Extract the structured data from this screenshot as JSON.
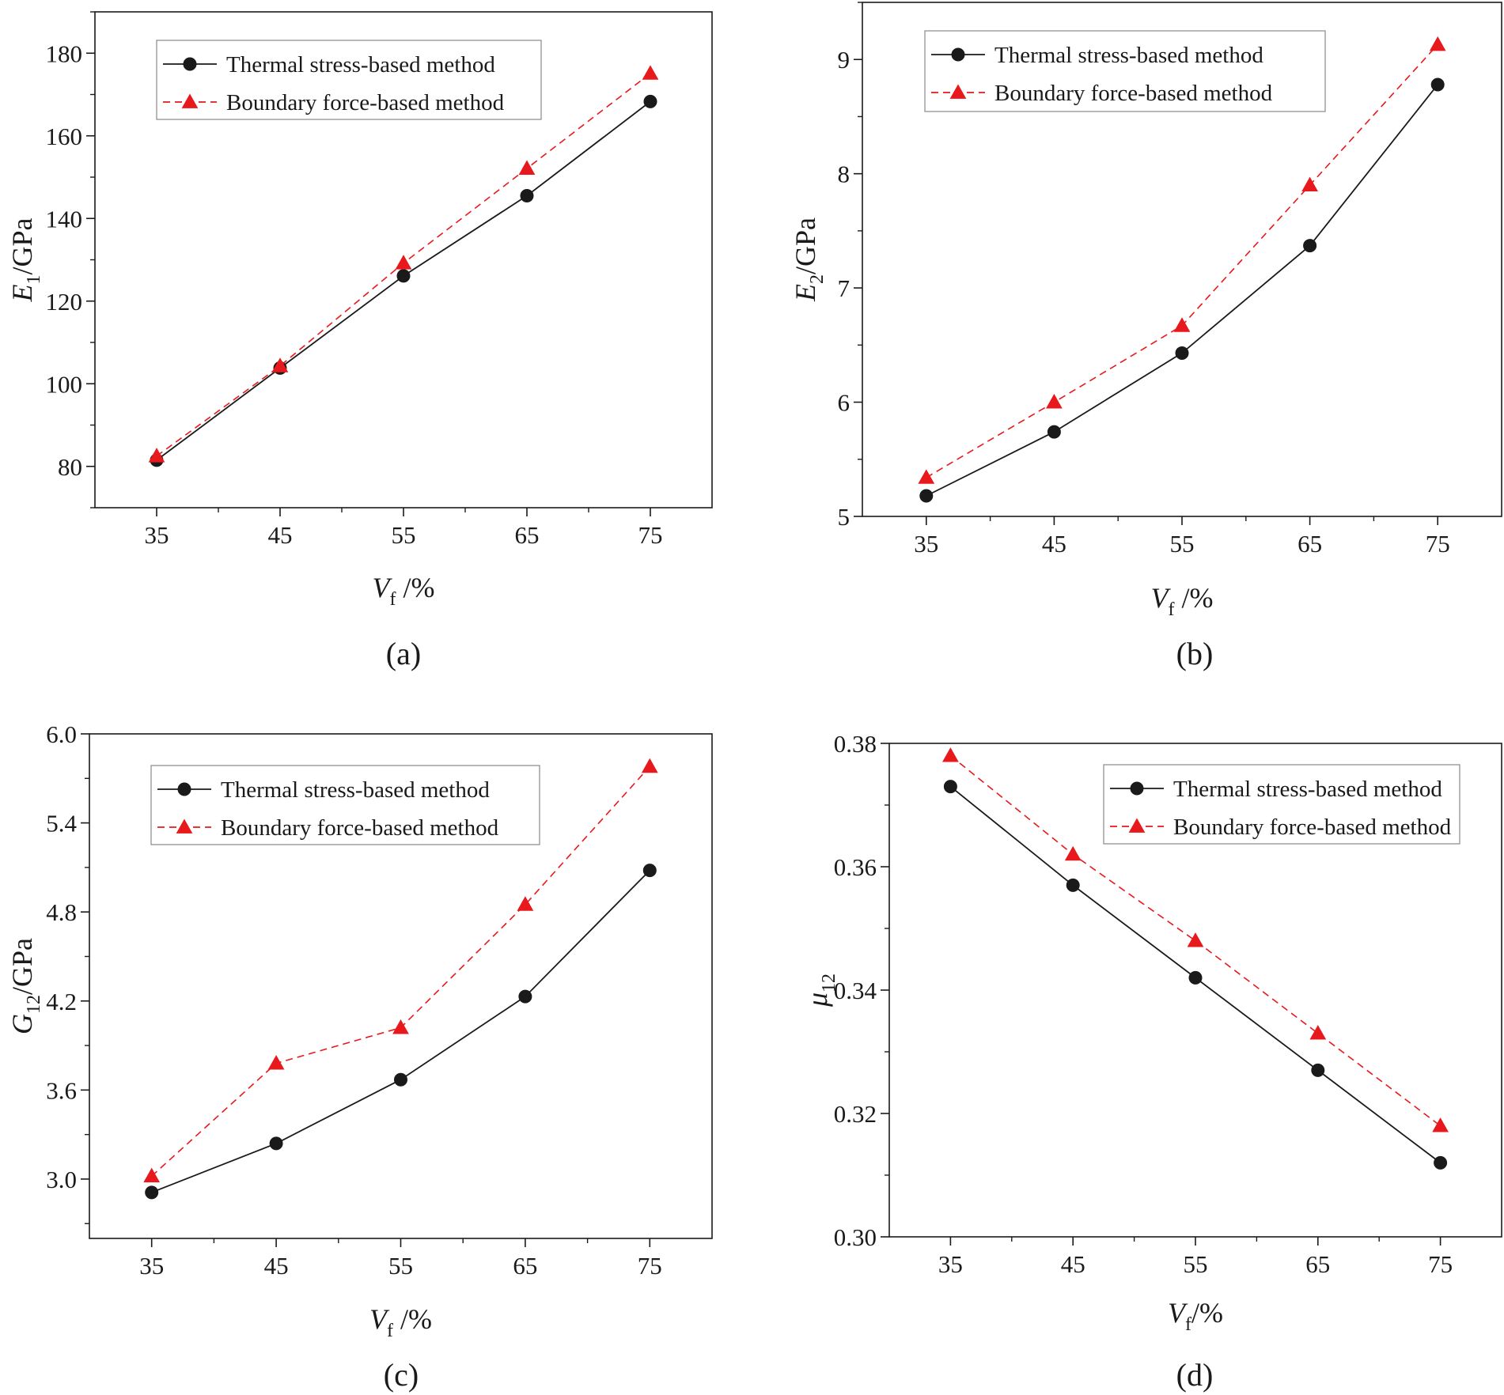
{
  "colors": {
    "series_thermal": "#1a1a1a",
    "series_boundary": "#e8191c"
  },
  "chart_data": [
    {
      "type": "line",
      "panel": "(a)",
      "x": [
        35,
        45,
        55,
        65,
        75
      ],
      "x_ticks": [
        "35",
        "45",
        "55",
        "65",
        "75"
      ],
      "xlim": [
        30,
        80
      ],
      "ylim": [
        70,
        190
      ],
      "y_ticks": [
        80,
        100,
        120,
        140,
        160,
        180
      ],
      "y_tick_labels": [
        "80",
        "100",
        "120",
        "140",
        "160",
        "180"
      ],
      "ylabel": {
        "symbol": "E",
        "sub": "1",
        "unit": "/GPa"
      },
      "xlabel": {
        "symbol": "V",
        "sub": "f",
        "unit": " /%"
      },
      "legend": "top-left",
      "series": [
        {
          "name": "Thermal stress-based method",
          "style": "solid",
          "marker": "circle",
          "values": [
            81.5,
            103.8,
            126.1,
            145.5,
            168.3
          ]
        },
        {
          "name": "Boundary force-based method",
          "style": "dashed",
          "marker": "triangle",
          "values": [
            82.5,
            104.3,
            129.2,
            152.1,
            175.1
          ]
        }
      ]
    },
    {
      "type": "line",
      "panel": "(b)",
      "x": [
        35,
        45,
        55,
        65,
        75
      ],
      "x_ticks": [
        "35",
        "45",
        "55",
        "65",
        "75"
      ],
      "xlim": [
        30,
        80
      ],
      "ylim": [
        5.0,
        9.5
      ],
      "y_ticks": [
        5,
        6,
        7,
        8,
        9
      ],
      "y_tick_labels": [
        "5",
        "6",
        "7",
        "8",
        "9"
      ],
      "ylabel": {
        "symbol": "E",
        "sub": "2",
        "unit": "/GPa"
      },
      "xlabel": {
        "symbol": "V",
        "sub": "f",
        "unit": " /%"
      },
      "legend": "top-left",
      "series": [
        {
          "name": "Thermal stress-based method",
          "style": "solid",
          "marker": "circle",
          "values": [
            5.18,
            5.74,
            6.43,
            7.37,
            8.78
          ]
        },
        {
          "name": "Boundary force-based method",
          "style": "dashed",
          "marker": "triangle",
          "values": [
            5.34,
            6.0,
            6.67,
            7.9,
            9.13
          ]
        }
      ]
    },
    {
      "type": "line",
      "panel": "(c)",
      "x": [
        35,
        45,
        55,
        65,
        75
      ],
      "x_ticks": [
        "35",
        "45",
        "55",
        "65",
        "75"
      ],
      "xlim": [
        30,
        80
      ],
      "ylim": [
        2.6,
        6.0
      ],
      "y_ticks": [
        3.0,
        3.6,
        4.2,
        4.8,
        5.4,
        6.0
      ],
      "y_tick_labels": [
        "3.0",
        "3.6",
        "4.2",
        "4.8",
        "5.4",
        "6.0"
      ],
      "ylabel": {
        "symbol": "G",
        "sub": "12",
        "unit": "/GPa"
      },
      "xlabel": {
        "symbol": "V",
        "sub": "f",
        "unit": " /%"
      },
      "legend": "top-left",
      "series": [
        {
          "name": "Thermal stress-based method",
          "style": "solid",
          "marker": "circle",
          "values": [
            2.91,
            3.24,
            3.67,
            4.23,
            5.08
          ]
        },
        {
          "name": "Boundary force-based method",
          "style": "dashed",
          "marker": "triangle",
          "values": [
            3.02,
            3.78,
            4.02,
            4.85,
            5.78
          ]
        }
      ]
    },
    {
      "type": "line",
      "panel": "(d)",
      "x": [
        35,
        45,
        55,
        65,
        75
      ],
      "x_ticks": [
        "35",
        "45",
        "55",
        "65",
        "75"
      ],
      "xlim": [
        30,
        80
      ],
      "ylim": [
        0.3,
        0.38
      ],
      "y_ticks": [
        0.3,
        0.32,
        0.34,
        0.36,
        0.38
      ],
      "y_tick_labels": [
        "0.30",
        "0.32",
        "0.34",
        "0.36",
        "0.38"
      ],
      "ylabel": {
        "symbol": "μ",
        "sub": "12",
        "unit": ""
      },
      "xlabel": {
        "symbol": "V",
        "sub": "f",
        "unit": "/%"
      },
      "legend": "top-right",
      "series": [
        {
          "name": "Thermal stress-based method",
          "style": "solid",
          "marker": "circle",
          "values": [
            0.373,
            0.357,
            0.342,
            0.327,
            0.312
          ]
        },
        {
          "name": "Boundary force-based method",
          "style": "dashed",
          "marker": "triangle",
          "values": [
            0.378,
            0.362,
            0.348,
            0.333,
            0.318
          ]
        }
      ]
    }
  ]
}
